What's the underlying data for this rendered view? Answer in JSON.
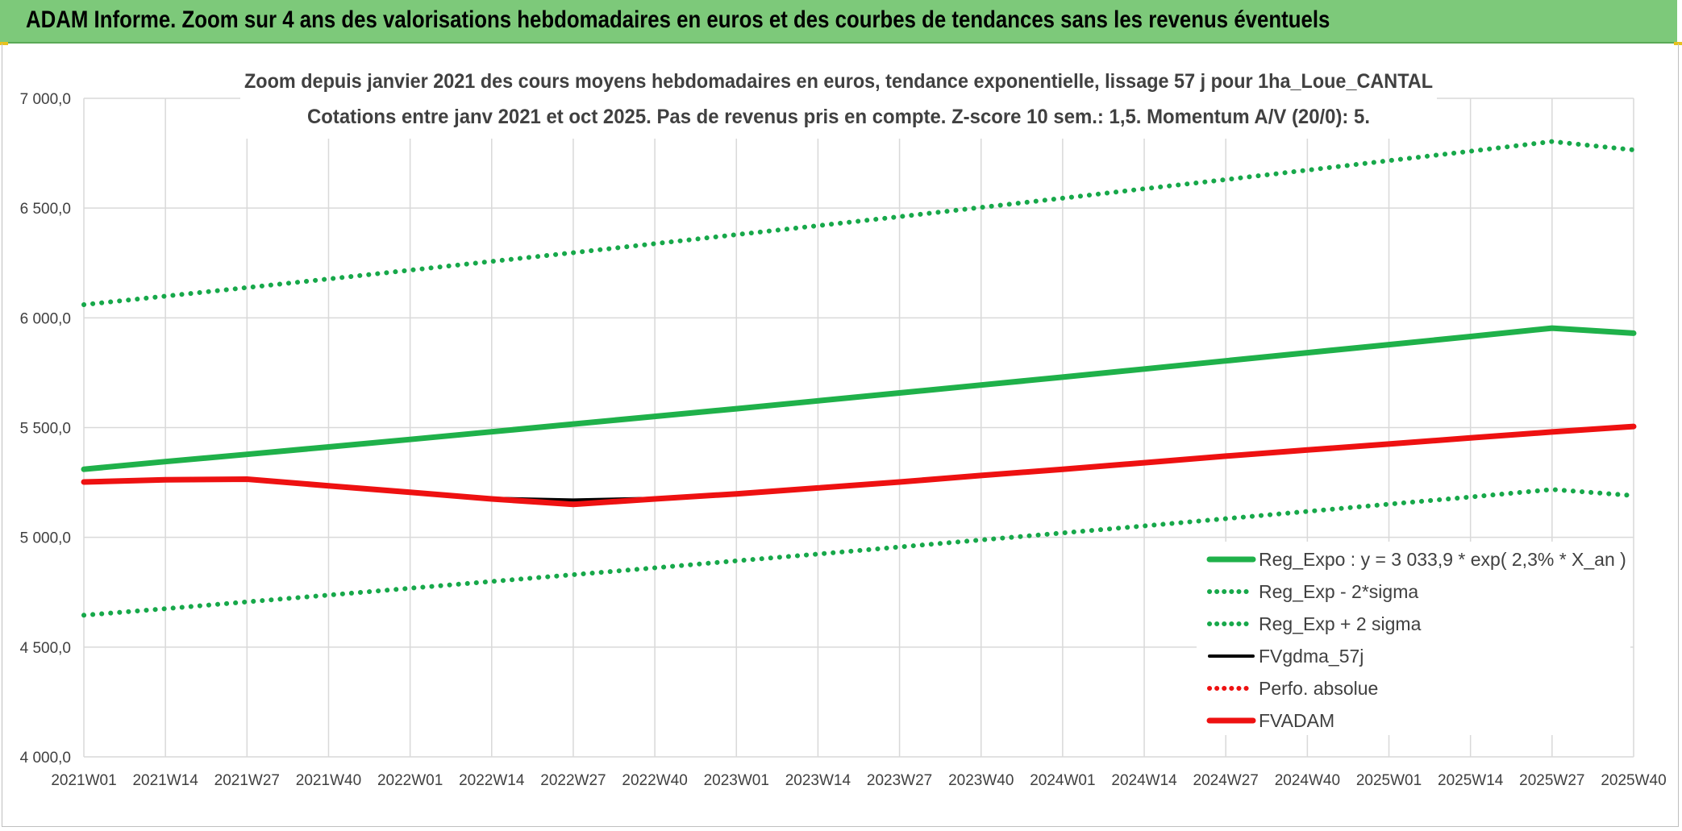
{
  "banner": {
    "title": "ADAM Informe. Zoom sur 4 ans des valorisations hebdomadaires en euros et des courbes de tendances sans les revenus éventuels"
  },
  "colors": {
    "banner_bg": "#7dc97a",
    "trend_green": "#1fb14a",
    "band_green": "#17a84a",
    "black_line": "#000000",
    "red_line": "#ee1111",
    "grid": "#d9d9d9"
  },
  "chart_data": {
    "type": "line",
    "title_lines": [
      "Zoom depuis janvier 2021 des cours moyens hebdomadaires en euros, tendance exponentielle, lissage 57 j pour 1ha_Loue_CANTAL",
      "Cotations entre janv 2021 et oct 2025. Pas de revenus pris en compte. Z-score 10 sem.: 1,5. Momentum A/V (20/0): 5."
    ],
    "x_categories": [
      "2021W01",
      "2021W14",
      "2021W27",
      "2021W40",
      "2022W01",
      "2022W14",
      "2022W27",
      "2022W40",
      "2023W01",
      "2023W14",
      "2023W27",
      "2023W40",
      "2024W01",
      "2024W14",
      "2024W27",
      "2024W40",
      "2025W01",
      "2025W14",
      "2025W27",
      "2025W40"
    ],
    "y_ticks": [
      "4 000,0",
      "4 500,0",
      "5 000,0",
      "5 500,0",
      "6 000,0",
      "6 500,0",
      "7 000,0"
    ],
    "ylim": [
      4000,
      7000
    ],
    "grid": true,
    "legend_position": "bottom-right",
    "series": [
      {
        "name": "Reg_Expo : y = 3 033,9 * exp( 2,3% *  X_an )",
        "style": "solid-thick",
        "color": "#1fb14a",
        "values": [
          5310,
          5345,
          5378,
          5412,
          5446,
          5481,
          5516,
          5551,
          5586,
          5622,
          5658,
          5694,
          5730,
          5767,
          5804,
          5841,
          5878,
          5915,
          5953,
          5930
        ]
      },
      {
        "name": "Reg_Exp - 2*sigma",
        "style": "dotted",
        "color": "#17a84a",
        "values": [
          4645,
          4675,
          4706,
          4737,
          4768,
          4799,
          4830,
          4861,
          4893,
          4924,
          4956,
          4988,
          5020,
          5052,
          5085,
          5118,
          5151,
          5184,
          5218,
          5190
        ]
      },
      {
        "name": "Reg_Exp + 2 sigma",
        "style": "dotted",
        "color": "#17a84a",
        "values": [
          6060,
          6099,
          6138,
          6177,
          6217,
          6257,
          6297,
          6338,
          6379,
          6420,
          6461,
          6503,
          6545,
          6588,
          6630,
          6673,
          6716,
          6759,
          6803,
          6765
        ]
      },
      {
        "name": "FVgdma_57j",
        "style": "solid",
        "color": "#000000",
        "values": [
          5252,
          5262,
          5262,
          5232,
          5205,
          5178,
          5170,
          5178,
          5198,
          5225,
          5252,
          5282,
          5310,
          5340,
          5370,
          5398,
          5425,
          5453,
          5480,
          5505
        ]
      },
      {
        "name": "Perfo. absolue",
        "style": "dotted",
        "color": "#ee1111",
        "values": []
      },
      {
        "name": "FVADAM",
        "style": "solid-thick",
        "color": "#ee1111",
        "values": [
          5252,
          5262,
          5265,
          5235,
          5205,
          5175,
          5150,
          5175,
          5198,
          5225,
          5252,
          5282,
          5310,
          5340,
          5370,
          5398,
          5425,
          5453,
          5480,
          5505
        ]
      }
    ]
  }
}
